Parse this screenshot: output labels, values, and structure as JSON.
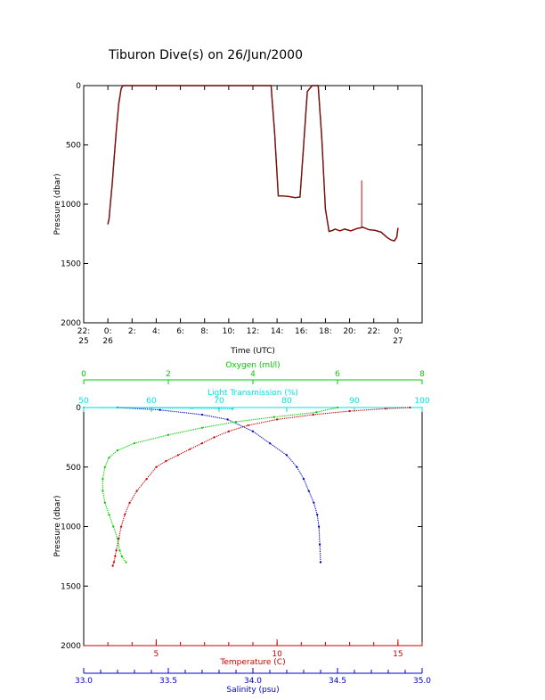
{
  "title": "Tiburon Dive(s) on 26/Jun/2000",
  "colors": {
    "axis": "#000000",
    "temperature": "#cc0000",
    "salinity": "#0000cc",
    "oxygen": "#00cc00",
    "light": "#00e0e0",
    "pressure_trace": "#000000",
    "pressure_overlay": "#cc0000"
  },
  "chart_data": [
    {
      "type": "line",
      "title": "Tiburon Dive(s) on 26/Jun/2000",
      "xlabel": "Time (UTC)",
      "ylabel": "Pressure (dbar)",
      "ylim": [
        2000,
        0
      ],
      "xlim_hours": [
        -2,
        26
      ],
      "x_tick_labels": [
        [
          "22:",
          "25"
        ],
        [
          "0:",
          "26"
        ],
        [
          "2:",
          ""
        ],
        [
          "4:",
          ""
        ],
        [
          "6:",
          ""
        ],
        [
          "8:",
          ""
        ],
        [
          "10:",
          ""
        ],
        [
          "12:",
          ""
        ],
        [
          "14:",
          ""
        ],
        [
          "16:",
          ""
        ],
        [
          "18:",
          ""
        ],
        [
          "20:",
          ""
        ],
        [
          "22:",
          ""
        ],
        [
          "0:",
          "27"
        ]
      ],
      "y_ticks": [
        0,
        500,
        1000,
        1500,
        2000
      ],
      "x_hours": [
        0.0,
        0.1,
        0.2,
        0.35,
        0.5,
        0.7,
        0.9,
        1.1,
        1.25,
        1.5,
        5,
        10,
        13.5,
        13.8,
        14.1,
        14.4,
        15,
        15.5,
        15.9,
        16.2,
        16.5,
        16.9,
        17.4,
        17.7,
        18.0,
        18.3,
        18.6,
        18.8,
        19.2,
        19.6,
        20.1,
        20.6,
        21.1,
        21.6,
        22.1,
        22.6,
        23.1,
        23.4,
        23.7,
        23.9,
        24.0
      ],
      "pressure": [
        1170,
        1120,
        1000,
        840,
        640,
        380,
        150,
        25,
        0,
        0,
        0,
        0,
        0,
        400,
        930,
        930,
        935,
        945,
        940,
        500,
        50,
        0,
        0,
        450,
        1040,
        1230,
        1220,
        1210,
        1225,
        1210,
        1225,
        1205,
        1195,
        1215,
        1220,
        1235,
        1280,
        1300,
        1310,
        1280,
        1200
      ],
      "overlay_spike": {
        "hour": 21.0,
        "from": 1200,
        "to": 800
      }
    },
    {
      "type": "scatter",
      "ylabel": "Pressure (dbar)",
      "ylim": [
        2000,
        0
      ],
      "y_ticks": [
        0,
        500,
        1000,
        1500,
        2000
      ],
      "axes": {
        "oxygen": {
          "label": "Oxygen (ml/l)",
          "range": [
            0,
            8
          ],
          "ticks": [
            0,
            2,
            4,
            6,
            8
          ]
        },
        "light": {
          "label": "Light Transmission (%)",
          "range": [
            50,
            100
          ],
          "ticks": [
            50,
            60,
            70,
            80,
            90,
            100
          ]
        },
        "temperature": {
          "label": "Temperature (C)",
          "range": [
            2,
            16
          ],
          "ticks": [
            5,
            10,
            15
          ]
        },
        "salinity": {
          "label": "Salinity (psu)",
          "range": [
            33.0,
            35.0
          ],
          "ticks": [
            "33.0",
            "33.5",
            "34.0",
            "34.5",
            "35.0"
          ]
        }
      },
      "series": [
        {
          "name": "Temperature (C)",
          "axis": "temperature",
          "x": [
            15.5,
            14.5,
            13.0,
            11.5,
            10.0,
            8.8,
            8.0,
            7.4,
            6.9,
            6.4,
            5.9,
            5.4,
            5.0,
            4.6,
            4.2,
            3.9,
            3.7,
            3.55,
            3.45,
            3.35,
            3.3,
            3.25,
            3.2
          ],
          "pressure": [
            0,
            10,
            30,
            60,
            100,
            150,
            200,
            250,
            300,
            350,
            400,
            450,
            500,
            600,
            700,
            800,
            900,
            1000,
            1100,
            1200,
            1250,
            1300,
            1330
          ]
        },
        {
          "name": "Salinity (psu)",
          "axis": "salinity",
          "x": [
            33.2,
            33.45,
            33.7,
            33.85,
            34.0,
            34.1,
            34.2,
            34.26,
            34.3,
            34.33,
            34.36,
            34.38,
            34.39,
            34.395,
            34.4
          ],
          "pressure": [
            0,
            20,
            60,
            100,
            200,
            300,
            400,
            500,
            600,
            700,
            800,
            900,
            1000,
            1150,
            1300
          ]
        },
        {
          "name": "Oxygen (ml/l)",
          "axis": "oxygen",
          "x": [
            6.0,
            5.5,
            4.5,
            3.6,
            2.8,
            2.0,
            1.2,
            0.8,
            0.6,
            0.5,
            0.45,
            0.45,
            0.5,
            0.6,
            0.7,
            0.8,
            0.85,
            0.9,
            1.0
          ],
          "pressure": [
            0,
            40,
            80,
            120,
            170,
            230,
            300,
            360,
            420,
            500,
            600,
            700,
            800,
            900,
            1000,
            1100,
            1200,
            1250,
            1300
          ]
        },
        {
          "name": "Light Transmission (%)",
          "axis": "light",
          "x": [
            50,
            55,
            60,
            66,
            70,
            72
          ],
          "pressure": [
            0,
            2,
            4,
            6,
            8,
            12
          ]
        }
      ]
    }
  ]
}
